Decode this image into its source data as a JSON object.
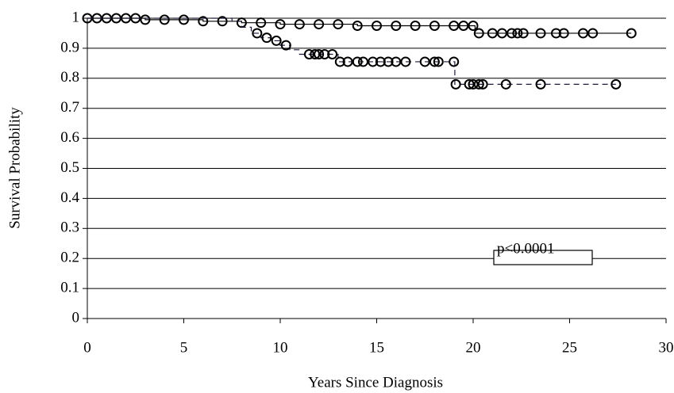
{
  "chart_data": {
    "type": "step",
    "x_label": "Years Since Diagnosis",
    "y_label": "Survival Probability",
    "annotation": "p<0.0001",
    "xlim": [
      0,
      30
    ],
    "xticks": [
      0,
      5,
      10,
      15,
      20,
      25,
      30
    ],
    "ylim": [
      0,
      1
    ],
    "yticks": [
      0,
      0.1,
      0.2,
      0.3,
      0.4,
      0.5,
      0.6,
      0.7,
      0.8,
      0.9,
      1
    ],
    "grid": true,
    "series": [
      {
        "color": "#000000",
        "dash": false,
        "x": [
          0,
          3,
          6,
          8,
          10,
          12,
          14,
          20,
          20.1,
          28.2
        ],
        "values": [
          1,
          0.995,
          0.99,
          0.985,
          0.98,
          0.98,
          0.975,
          0.975,
          0.95,
          0.95
        ],
        "censor_x": [
          0,
          0.5,
          1,
          1.5,
          2,
          2.5,
          3,
          4,
          5,
          6,
          7,
          8,
          9,
          10,
          11,
          12,
          13,
          14,
          15,
          16,
          17,
          18,
          19,
          19.5,
          20,
          20.3,
          21,
          21.5,
          22,
          22.3,
          22.6,
          23.5,
          24.3,
          24.7,
          25.7,
          26.2,
          28.2
        ],
        "censor_values": [
          1,
          1,
          1,
          1,
          1,
          1,
          0.995,
          0.995,
          0.995,
          0.99,
          0.99,
          0.985,
          0.985,
          0.98,
          0.98,
          0.98,
          0.98,
          0.975,
          0.975,
          0.975,
          0.975,
          0.975,
          0.975,
          0.975,
          0.975,
          0.95,
          0.95,
          0.95,
          0.95,
          0.95,
          0.95,
          0.95,
          0.95,
          0.95,
          0.95,
          0.95,
          0.95
        ]
      },
      {
        "color": "#1a1a3a",
        "dash": true,
        "x": [
          0,
          7.5,
          8,
          8.5,
          9,
          9.5,
          10,
          10.5,
          11,
          13,
          19,
          19.05,
          27.4
        ],
        "values": [
          1,
          0.99,
          0.97,
          0.95,
          0.935,
          0.925,
          0.91,
          0.895,
          0.88,
          0.855,
          0.855,
          0.78,
          0.78
        ],
        "censor_x": [
          8.8,
          9.3,
          9.8,
          10.3,
          11.5,
          11.8,
          12,
          12.3,
          12.7,
          13.1,
          13.5,
          14,
          14.3,
          14.8,
          15.2,
          15.6,
          16,
          16.5,
          17.5,
          18,
          18.2,
          19,
          19.1,
          19.8,
          20,
          20.3,
          20.5,
          21.7,
          23.5,
          27.4
        ],
        "censor_values": [
          0.95,
          0.935,
          0.925,
          0.91,
          0.88,
          0.88,
          0.88,
          0.88,
          0.88,
          0.855,
          0.855,
          0.855,
          0.855,
          0.855,
          0.855,
          0.855,
          0.855,
          0.855,
          0.855,
          0.855,
          0.855,
          0.855,
          0.78,
          0.78,
          0.78,
          0.78,
          0.78,
          0.78,
          0.78,
          0.78
        ]
      }
    ]
  }
}
